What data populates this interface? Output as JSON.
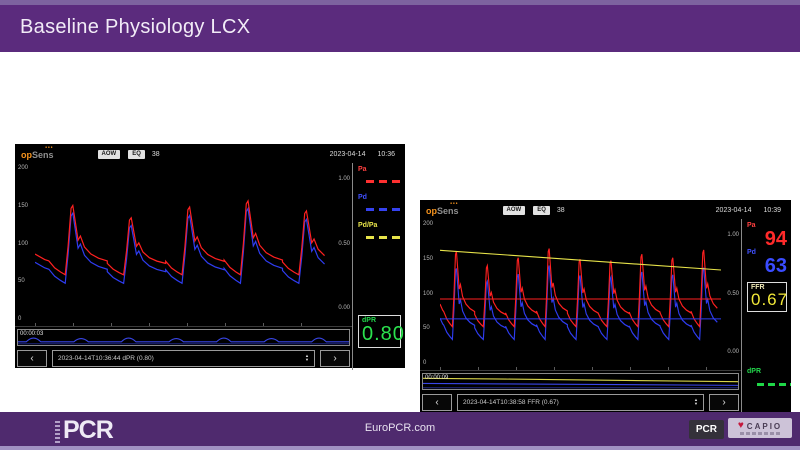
{
  "slide": {
    "title": "Baseline Physiology LCX",
    "footer": {
      "url": "EuroPCR.com",
      "logo_left": "PCR",
      "badge_pcr": "PCR",
      "heart_icon": "♥",
      "badge_capio": "CAPIO"
    },
    "colors": {
      "header_purple": "#5b2b7d",
      "footer_purple": "#4f2a6e"
    }
  },
  "icons": {
    "prev": "‹",
    "next": "›",
    "spin_up": "▲",
    "spin_down": "▼"
  },
  "monitors": {
    "left": {
      "brand": {
        "op": "op",
        "sens": "Sens",
        "dots": "•••"
      },
      "buttons": [
        "AOW",
        "EQ"
      ],
      "channel": "38",
      "date": "2023-04-14",
      "time": "10:36",
      "y_ticks": [
        "200",
        "150",
        "100",
        "50",
        "0"
      ],
      "ratio_ticks": [
        "1.00",
        "0.50",
        "0.00"
      ],
      "legend": {
        "pa": "Pa",
        "pd": "Pd",
        "pdpa": "Pd/Pa"
      },
      "dpr": {
        "label": "dPR",
        "value": "0.80"
      },
      "timeline_time": "00:00:03",
      "nav_record": "2023-04-14T10:36:44   dPR (0.80)",
      "waveform": {
        "view": [
          300,
          150
        ],
        "ymax": 200,
        "beats": {
          "off": 14,
          "period": 59
        },
        "pa": {
          "base": 60,
          "peaks": [
            150,
            134,
            148,
            156,
            143
          ]
        },
        "pd": {
          "base": 49,
          "peaks": [
            140,
            124,
            137,
            146,
            132
          ]
        },
        "colors": {
          "pa": "#ff2020",
          "pd": "#2e3cf0"
        }
      }
    },
    "right": {
      "brand": {
        "op": "op",
        "sens": "Sens",
        "dots": "•••"
      },
      "buttons": [
        "AOW",
        "EQ"
      ],
      "channel": "38",
      "date": "2023-04-14",
      "time": "10:39",
      "y_ticks": [
        "200",
        "150",
        "100",
        "50",
        "0"
      ],
      "ratio_ticks": [
        "1.00",
        "0.50",
        "0.00"
      ],
      "pa": {
        "label": "Pa",
        "value": "94"
      },
      "pd": {
        "label": "Pd",
        "value": "63"
      },
      "ffr": {
        "label": "FFR",
        "value": "0.67"
      },
      "dpr": {
        "label": "dPR"
      },
      "timeline_time": "00:00:09",
      "nav_record": "2023-04-14T10:38:58   FFR (0.67)",
      "waveform": {
        "view": [
          300,
          130
        ],
        "ymax": 200,
        "beats": {
          "off": 4,
          "period": 33
        },
        "pa": {
          "base": 54,
          "peaks": [
            160,
            140,
            151,
            164,
            149,
            147,
            156,
            151,
            162
          ]
        },
        "pd": {
          "base": 36,
          "peaks": [
            136,
            118,
            128,
            140,
            126,
            124,
            131,
            127,
            137
          ]
        },
        "pa_mean": 93,
        "pd_mean": 65,
        "ratio": {
          "from": 0.83,
          "to": 0.68,
          "map": [
            8,
            193
          ]
        },
        "colors": {
          "pa": "#ff2020",
          "pd": "#2e3cf0",
          "ratio": "#e8e44a"
        }
      }
    }
  }
}
